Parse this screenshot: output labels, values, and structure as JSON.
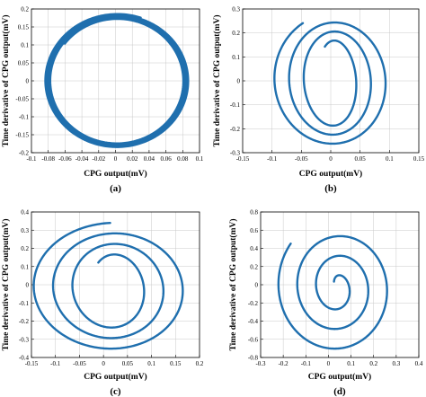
{
  "figure": {
    "accent_color": "#1f6fae"
  },
  "chart_data": [
    {
      "type": "line",
      "panel_label": "(a)",
      "xlabel": "CPG output(mV)",
      "ylabel": "Time derivative of CPG output(mV)",
      "xlim": [
        -0.1,
        0.1
      ],
      "ylim": [
        -0.2,
        0.2
      ],
      "xticks": [
        "-0.1",
        "-0.08",
        "-0.06",
        "-0.04",
        "-0.02",
        "0",
        "0.02",
        "0.04",
        "0.06",
        "0.08",
        "0.1"
      ],
      "yticks": [
        "0.2",
        "0.15",
        "0.1",
        "0.05",
        "0",
        "-0.05",
        "-0.1",
        "-0.15",
        "-0.2"
      ],
      "grid": true,
      "series": [
        {
          "shape": "spiral",
          "center": [
            0.002,
            0.0
          ],
          "amp_start": [
            0.078,
            0.172
          ],
          "amp_end": [
            0.086,
            0.186
          ],
          "turns": 4.2,
          "start_angle_deg": 143
        }
      ]
    },
    {
      "type": "line",
      "panel_label": "(b)",
      "xlabel": "CPG output(mV)",
      "ylabel": "Time derivative of CPG output(mV)",
      "xlim": [
        -0.15,
        0.15
      ],
      "ylim": [
        -0.3,
        0.3
      ],
      "xticks": [
        "-0.15",
        "-0.1",
        "-0.05",
        "0",
        "0.05",
        "0.1",
        "0.15"
      ],
      "yticks": [
        "0.3",
        "0.2",
        "0.1",
        "0",
        "-0.1",
        "-0.2",
        "-0.3"
      ],
      "grid": true,
      "series": [
        {
          "shape": "spiral",
          "center": [
            0.005,
            0.0
          ],
          "amp_start": [
            0.03,
            0.165
          ],
          "amp_end": [
            0.105,
            0.278
          ],
          "turns": 3.0,
          "start_angle_deg": 120
        }
      ]
    },
    {
      "type": "line",
      "panel_label": "(c)",
      "xlabel": "CPG output(mV)",
      "ylabel": "Time derivative of CPG output(mV)",
      "xlim": [
        -0.15,
        0.2
      ],
      "ylim": [
        -0.4,
        0.4
      ],
      "xticks": [
        "-0.15",
        "-0.1",
        "-0.05",
        "0",
        "0.05",
        "0.1",
        "0.15",
        "0.2"
      ],
      "yticks": [
        "0.4",
        "0.3",
        "0.2",
        "0.1",
        "0",
        "-0.1",
        "-0.2",
        "-0.3",
        "-0.4"
      ],
      "grid": true,
      "series": [
        {
          "shape": "spiral",
          "center": [
            0.02,
            -0.02
          ],
          "amp_start": [
            0.05,
            0.18
          ],
          "amp_end": [
            0.175,
            0.36
          ],
          "turns": 3.1,
          "start_angle_deg": 128
        }
      ]
    },
    {
      "type": "line",
      "panel_label": "(d)",
      "xlabel": "CPG output(mV)",
      "ylabel": "Time derivative of CPG output(mV)",
      "xlim": [
        -0.3,
        0.4
      ],
      "ylim": [
        -0.8,
        0.8
      ],
      "xticks": [
        "-0.3",
        "-0.2",
        "-0.1",
        "0",
        "0.1",
        "0.2",
        "0.3",
        "0.4"
      ],
      "yticks": [
        "0.8",
        "0.6",
        "0.4",
        "0.2",
        "0",
        "-0.2",
        "-0.4",
        "-0.6",
        "-0.8"
      ],
      "grid": true,
      "series": [
        {
          "shape": "spiral",
          "center": [
            0.04,
            -0.03
          ],
          "amp_start": [
            0.02,
            0.1
          ],
          "amp_end": [
            0.27,
            0.75
          ],
          "turns": 3.0,
          "start_angle_deg": 140
        }
      ]
    }
  ]
}
